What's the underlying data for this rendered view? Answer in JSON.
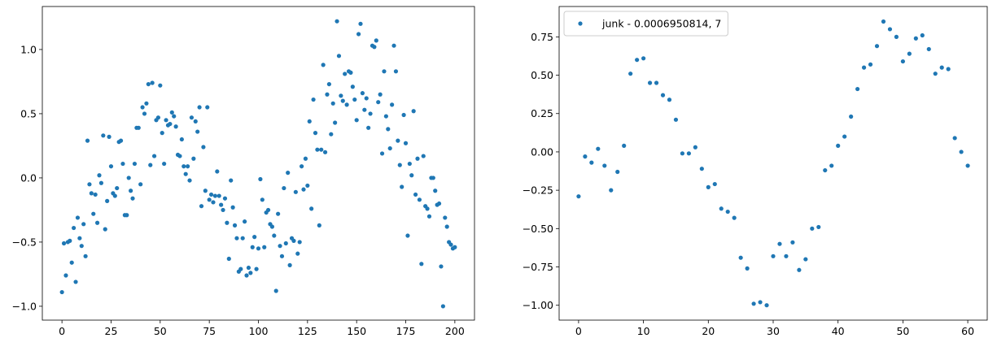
{
  "chart_data": [
    {
      "type": "scatter",
      "color": "#1f77b4",
      "x": [
        0,
        1,
        2,
        3,
        4,
        5,
        6,
        7,
        8,
        9,
        10,
        11,
        12,
        13,
        14,
        15,
        16,
        17,
        18,
        19,
        20,
        21,
        22,
        23,
        24,
        25,
        26,
        27,
        28,
        29,
        30,
        31,
        32,
        33,
        34,
        35,
        36,
        37,
        38,
        39,
        40,
        41,
        42,
        43,
        44,
        45,
        46,
        47,
        48,
        49,
        50,
        51,
        52,
        53,
        54,
        55,
        56,
        57,
        58,
        59,
        60,
        61,
        62,
        63,
        64,
        65,
        66,
        67,
        68,
        69,
        70,
        71,
        72,
        73,
        74,
        75,
        76,
        77,
        78,
        79,
        80,
        81,
        82,
        83,
        84,
        85,
        86,
        87,
        88,
        89,
        90,
        91,
        92,
        93,
        94,
        95,
        96,
        97,
        98,
        99,
        100,
        101,
        102,
        103,
        104,
        105,
        106,
        107,
        108,
        109,
        110,
        111,
        112,
        113,
        114,
        115,
        116,
        117,
        118,
        119,
        120,
        121,
        122,
        123,
        124,
        125,
        126,
        127,
        128,
        129,
        130,
        131,
        132,
        133,
        134,
        135,
        136,
        137,
        138,
        139,
        140,
        141,
        142,
        143,
        144,
        145,
        146,
        147,
        148,
        149,
        150,
        151,
        152,
        153,
        154,
        155,
        156,
        157,
        158,
        159,
        160,
        161,
        162,
        163,
        164,
        165,
        166,
        167,
        168,
        169,
        170,
        171,
        172,
        173,
        174,
        175,
        176,
        177,
        178,
        179,
        180,
        181,
        182,
        183,
        184,
        185,
        186,
        187,
        188,
        189,
        190,
        191,
        192,
        193,
        194,
        195,
        196,
        197,
        198,
        199,
        200
      ],
      "values": [
        -0.89,
        -0.51,
        -0.76,
        -0.5,
        -0.49,
        -0.66,
        -0.39,
        -0.81,
        -0.31,
        -0.47,
        -0.53,
        -0.36,
        -0.61,
        0.29,
        -0.05,
        -0.12,
        -0.28,
        -0.13,
        -0.35,
        0.02,
        -0.04,
        0.33,
        -0.4,
        -0.18,
        0.32,
        0.09,
        -0.12,
        -0.14,
        -0.08,
        0.28,
        0.29,
        0.11,
        -0.29,
        -0.29,
        0.0,
        -0.1,
        -0.16,
        0.11,
        0.39,
        0.39,
        -0.05,
        0.55,
        0.5,
        0.58,
        0.73,
        0.1,
        0.74,
        0.17,
        0.45,
        0.47,
        0.72,
        0.35,
        0.11,
        0.45,
        0.41,
        0.42,
        0.51,
        0.48,
        0.4,
        0.18,
        0.17,
        0.3,
        0.09,
        0.03,
        0.09,
        -0.02,
        0.47,
        0.15,
        0.44,
        0.36,
        0.55,
        -0.22,
        0.24,
        -0.1,
        0.55,
        -0.17,
        -0.13,
        -0.19,
        -0.14,
        0.05,
        -0.14,
        -0.21,
        -0.25,
        -0.16,
        -0.35,
        -0.63,
        -0.02,
        -0.23,
        -0.37,
        -0.47,
        -0.73,
        -0.71,
        -0.47,
        -0.34,
        -0.76,
        -0.7,
        -0.74,
        -0.54,
        -0.46,
        -0.71,
        -0.55,
        -0.01,
        -0.17,
        -0.54,
        -0.27,
        -0.25,
        -0.36,
        -0.38,
        -0.45,
        -0.88,
        -0.28,
        -0.53,
        -0.61,
        -0.08,
        -0.51,
        0.04,
        -0.68,
        -0.47,
        -0.49,
        -0.11,
        -0.59,
        -0.5,
        0.09,
        -0.09,
        0.15,
        -0.06,
        0.44,
        -0.24,
        0.61,
        0.35,
        0.22,
        -0.37,
        0.22,
        0.88,
        0.2,
        0.65,
        0.73,
        0.34,
        0.58,
        0.43,
        1.22,
        0.95,
        0.64,
        0.6,
        0.81,
        0.57,
        0.83,
        0.82,
        0.71,
        0.61,
        0.45,
        1.12,
        1.2,
        0.66,
        0.53,
        0.62,
        0.39,
        0.5,
        1.03,
        1.02,
        1.07,
        0.59,
        0.65,
        0.19,
        0.83,
        0.48,
        0.38,
        0.23,
        0.57,
        1.03,
        0.83,
        0.29,
        0.1,
        -0.07,
        0.49,
        0.27,
        -0.45,
        0.11,
        0.02,
        0.52,
        -0.13,
        0.15,
        -0.17,
        -0.67,
        0.17,
        -0.22,
        -0.24,
        -0.3,
        0.0,
        0.0,
        -0.1,
        -0.21,
        -0.2,
        -0.69,
        -1.0,
        -0.31,
        -0.38,
        -0.5,
        -0.52,
        -0.55,
        -0.54
      ],
      "xlim": [
        -10,
        210
      ],
      "xticks": [
        0,
        25,
        50,
        75,
        100,
        125,
        150,
        175,
        200
      ],
      "ylim": [
        -1.108,
        1.335
      ],
      "yticks": [
        {
          "value": -1,
          "label": "−1.0"
        },
        {
          "value": -0.5,
          "label": "−0.5"
        },
        {
          "value": 0,
          "label": "0.0"
        },
        {
          "value": 0.5,
          "label": "0.5"
        },
        {
          "value": 1,
          "label": "1.0"
        }
      ]
    },
    {
      "type": "scatter",
      "legend": "upper left",
      "x": [
        0,
        1,
        2,
        3,
        4,
        5,
        6,
        7,
        8,
        9,
        10,
        11,
        12,
        13,
        14,
        15,
        16,
        17,
        18,
        19,
        20,
        21,
        22,
        23,
        24,
        25,
        26,
        27,
        28,
        29,
        30,
        31,
        32,
        33,
        34,
        35,
        36,
        37,
        38,
        39,
        40,
        41,
        42,
        43,
        44,
        45,
        46,
        47,
        48,
        49,
        50,
        51,
        52,
        53,
        54,
        55,
        56,
        57,
        58,
        59,
        60
      ],
      "series": [
        {
          "name": "junk - 0.0006950814, 7",
          "color": "#1f77b4",
          "values": [
            -0.29,
            -0.03,
            -0.07,
            0.02,
            -0.09,
            -0.25,
            -0.13,
            0.04,
            0.51,
            0.6,
            0.61,
            0.45,
            0.45,
            0.37,
            0.34,
            0.21,
            -0.01,
            -0.01,
            0.03,
            -0.11,
            -0.23,
            -0.21,
            -0.37,
            -0.39,
            -0.43,
            -0.69,
            -0.76,
            -0.99,
            -0.98,
            -1.0,
            -0.68,
            -0.6,
            -0.68,
            -0.59,
            -0.77,
            -0.7,
            -0.5,
            -0.49,
            -0.12,
            -0.09,
            0.04,
            0.1,
            0.23,
            0.41,
            0.55,
            0.57,
            0.69,
            0.85,
            0.8,
            0.75,
            0.59,
            0.64,
            0.74,
            0.76,
            0.67,
            0.51,
            0.55,
            0.54,
            0.09,
            0.0,
            -0.09
          ]
        }
      ],
      "xlim": [
        -3,
        63
      ],
      "xticks": [
        0,
        10,
        20,
        30,
        40,
        50,
        60
      ],
      "ylim": [
        -1.097,
        0.948
      ],
      "yticks": [
        {
          "value": -1,
          "label": "−1.00"
        },
        {
          "value": -0.75,
          "label": "−0.75"
        },
        {
          "value": -0.5,
          "label": "−0.50"
        },
        {
          "value": -0.25,
          "label": "−0.25"
        },
        {
          "value": 0,
          "label": "0.00"
        },
        {
          "value": 0.25,
          "label": "0.25"
        },
        {
          "value": 0.5,
          "label": "0.50"
        },
        {
          "value": 0.75,
          "label": "0.75"
        }
      ]
    }
  ]
}
